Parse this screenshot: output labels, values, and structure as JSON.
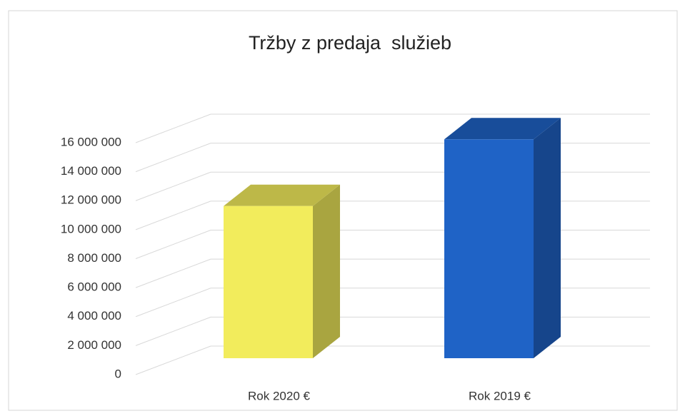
{
  "chart_data": {
    "type": "bar3d",
    "title": "Tržby z predaja  služieb",
    "categories": [
      "Rok 2020 €",
      "Rok 2019 €"
    ],
    "series": [
      {
        "name": "Tržby",
        "colors": [
          "#f2ec5c",
          "#1f63c6"
        ],
        "values": [
          10500000,
          15100000
        ]
      }
    ],
    "ylim": [
      0,
      16000000
    ],
    "yticks": [
      0,
      {
        "value": 2000000,
        "label": "2 000 000"
      },
      {
        "value": 4000000,
        "label": "4 000 000"
      },
      {
        "value": 6000000,
        "label": "6 000 000"
      },
      {
        "value": 8000000,
        "label": "8 000 000"
      },
      {
        "value": 10000000,
        "label": "10 000 000"
      },
      {
        "value": 12000000,
        "label": "12 000 000"
      },
      {
        "value": 14000000,
        "label": "14 000 000"
      },
      {
        "value": 16000000,
        "label": "16 000 000"
      }
    ],
    "grid": true
  }
}
